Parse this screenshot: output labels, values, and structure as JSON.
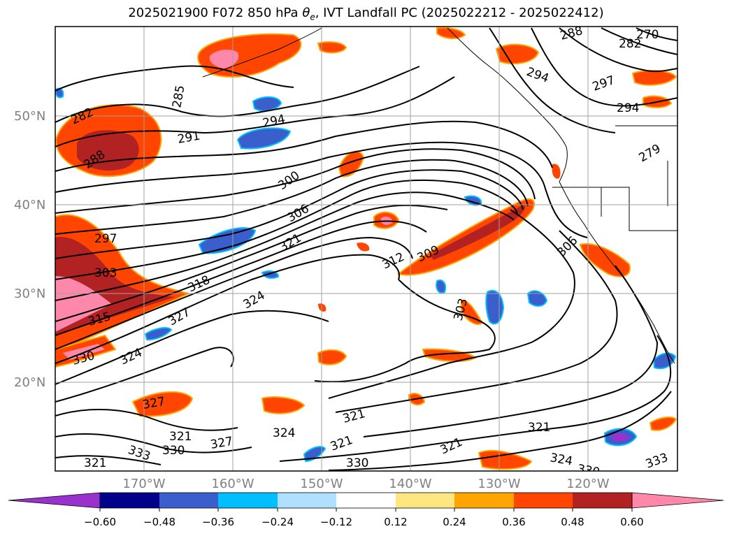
{
  "title": "2025021900 F072 850 hPa θe, IVT Landfall PC (2025022212 - 2025022412)",
  "title_parts": {
    "prefix": "2025021900 F072 850 hPa ",
    "symbol": "θ",
    "subscript": "e",
    "suffix": ", IVT Landfall PC (2025022212 - 2025022412)"
  },
  "map": {
    "lat_labels": [
      "50°N",
      "40°N",
      "30°N",
      "20°N"
    ],
    "lon_labels": [
      "170°W",
      "160°W",
      "150°W",
      "140°W",
      "130°W",
      "120°W"
    ],
    "contour_labels": [
      "282",
      "288",
      "285",
      "291",
      "294",
      "300",
      "306",
      "297",
      "303",
      "321",
      "318",
      "315",
      "312",
      "309",
      "324",
      "327",
      "330",
      "303",
      "324",
      "327",
      "321",
      "321",
      "327",
      "330",
      "333",
      "321",
      "324",
      "321",
      "321",
      "330",
      "321",
      "324",
      "330",
      "333",
      "306",
      "288",
      "270",
      "282",
      "294",
      "297",
      "294",
      "279"
    ]
  },
  "colorbar": {
    "tick_labels": [
      "−0.60",
      "−0.48",
      "−0.36",
      "−0.24",
      "−0.12",
      "0.12",
      "0.24",
      "0.36",
      "0.48",
      "0.60"
    ],
    "colors": [
      "#9932cc",
      "#00008b",
      "#3a5fcd",
      "#00bfff",
      "#b0e0ff",
      "#ffffff",
      "#ffe680",
      "#ffa500",
      "#ff4500",
      "#b22222",
      "#ff88aa",
      "#ff88aa"
    ]
  },
  "colors": {
    "coast": "#000000",
    "contour": "#000000",
    "grid": "#a0a0a0"
  }
}
